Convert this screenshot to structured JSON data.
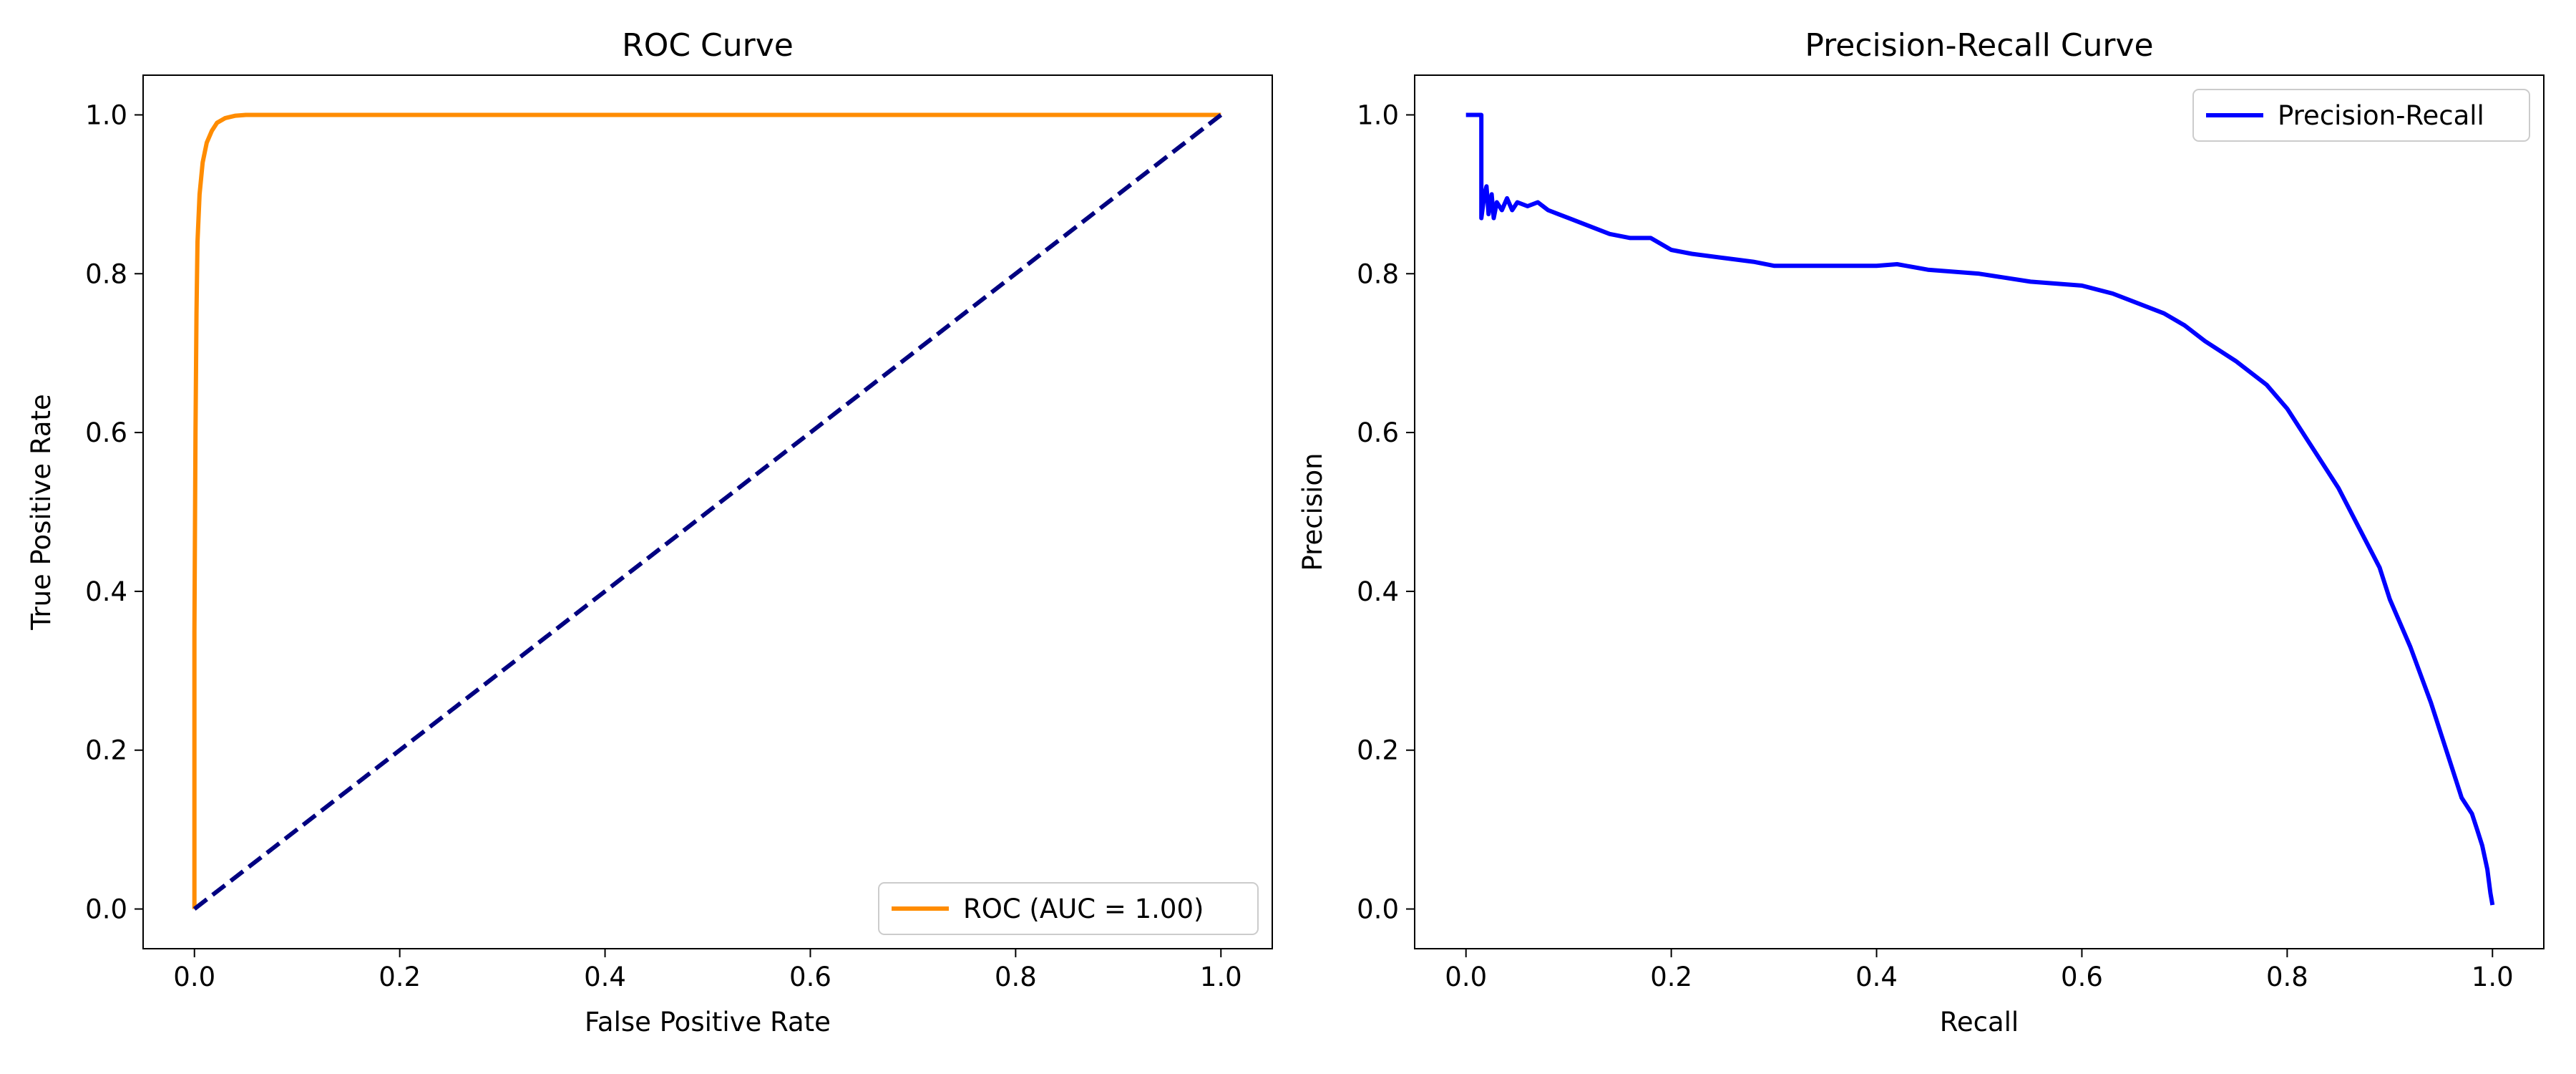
{
  "chart_data": [
    {
      "type": "line",
      "title": "ROC Curve",
      "xlabel": "False Positive Rate",
      "ylabel": "True Positive Rate",
      "xlim": [
        -0.05,
        1.05
      ],
      "ylim": [
        -0.05,
        1.05
      ],
      "xticks": [
        "0.0",
        "0.2",
        "0.4",
        "0.6",
        "0.8",
        "1.0"
      ],
      "yticks": [
        "0.0",
        "0.2",
        "0.4",
        "0.6",
        "0.8",
        "1.0"
      ],
      "grid": false,
      "legend_position": "lower right",
      "series": [
        {
          "name": "ROC (AUC = 1.00)",
          "color": "#ff8c00",
          "style": "solid",
          "in_legend": true,
          "x": [
            0.0,
            0.0,
            0.001,
            0.002,
            0.003,
            0.005,
            0.008,
            0.012,
            0.017,
            0.022,
            0.03,
            0.04,
            0.05,
            0.2,
            0.5,
            0.8,
            1.0
          ],
          "y": [
            0.0,
            0.35,
            0.6,
            0.75,
            0.84,
            0.9,
            0.94,
            0.965,
            0.98,
            0.99,
            0.996,
            0.999,
            1.0,
            1.0,
            1.0,
            1.0,
            1.0
          ]
        },
        {
          "name": "",
          "color": "#000080",
          "style": "dashed",
          "in_legend": false,
          "x": [
            0.0,
            1.0
          ],
          "y": [
            0.0,
            1.0
          ]
        }
      ]
    },
    {
      "type": "line",
      "title": "Precision-Recall Curve",
      "xlabel": "Recall",
      "ylabel": "Precision",
      "xlim": [
        -0.05,
        1.05
      ],
      "ylim": [
        -0.05,
        1.05
      ],
      "xticks": [
        "0.0",
        "0.2",
        "0.4",
        "0.6",
        "0.8",
        "1.0"
      ],
      "yticks": [
        "0.0",
        "0.2",
        "0.4",
        "0.6",
        "0.8",
        "1.0"
      ],
      "grid": false,
      "legend_position": "upper right",
      "series": [
        {
          "name": "Precision-Recall",
          "color": "#0000ff",
          "style": "solid",
          "in_legend": true,
          "x": [
            0.0,
            0.015,
            0.015,
            0.018,
            0.02,
            0.022,
            0.025,
            0.027,
            0.03,
            0.035,
            0.04,
            0.045,
            0.05,
            0.06,
            0.07,
            0.08,
            0.09,
            0.1,
            0.12,
            0.14,
            0.16,
            0.18,
            0.2,
            0.22,
            0.25,
            0.28,
            0.3,
            0.35,
            0.4,
            0.42,
            0.45,
            0.5,
            0.55,
            0.6,
            0.63,
            0.65,
            0.68,
            0.7,
            0.72,
            0.75,
            0.78,
            0.8,
            0.82,
            0.85,
            0.87,
            0.89,
            0.9,
            0.92,
            0.94,
            0.95,
            0.96,
            0.97,
            0.98,
            0.985,
            0.99,
            0.995,
            0.998,
            1.0
          ],
          "y": [
            1.0,
            1.0,
            0.87,
            0.9,
            0.91,
            0.875,
            0.9,
            0.87,
            0.89,
            0.88,
            0.895,
            0.88,
            0.89,
            0.885,
            0.89,
            0.88,
            0.875,
            0.87,
            0.86,
            0.85,
            0.845,
            0.845,
            0.83,
            0.825,
            0.82,
            0.815,
            0.81,
            0.81,
            0.81,
            0.812,
            0.805,
            0.8,
            0.79,
            0.785,
            0.775,
            0.765,
            0.75,
            0.735,
            0.715,
            0.69,
            0.66,
            0.63,
            0.59,
            0.53,
            0.48,
            0.43,
            0.39,
            0.33,
            0.26,
            0.22,
            0.18,
            0.14,
            0.12,
            0.1,
            0.08,
            0.05,
            0.02,
            0.005
          ]
        }
      ]
    }
  ]
}
